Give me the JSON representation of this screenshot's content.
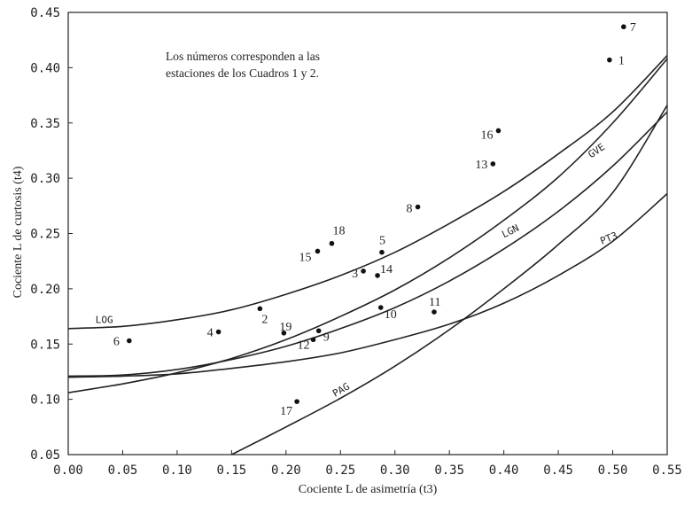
{
  "chart_data": {
    "type": "scatter",
    "title": "",
    "xlabel": "Cociente L de asimetría (t3)",
    "ylabel": "Cociente L de curtosis (t4)",
    "xlim": [
      0.0,
      0.55
    ],
    "ylim": [
      0.05,
      0.45
    ],
    "x_ticks": [
      "0.00",
      "0.05",
      "0.10",
      "0.15",
      "0.20",
      "0.25",
      "0.30",
      "0.35",
      "0.40",
      "0.45",
      "0.50",
      "0.55"
    ],
    "y_ticks": [
      "0.05",
      "0.10",
      "0.15",
      "0.20",
      "0.25",
      "0.30",
      "0.35",
      "0.40",
      "0.45"
    ],
    "grid": false,
    "annotation": [
      "Los números corresponden a las",
      "estaciones de los Cuadros 1 y 2."
    ],
    "points": [
      {
        "label": "1",
        "x": 0.497,
        "y": 0.407
      },
      {
        "label": "2",
        "x": 0.176,
        "y": 0.182
      },
      {
        "label": "3",
        "x": 0.271,
        "y": 0.216
      },
      {
        "label": "4",
        "x": 0.138,
        "y": 0.161
      },
      {
        "label": "5",
        "x": 0.288,
        "y": 0.233
      },
      {
        "label": "6",
        "x": 0.056,
        "y": 0.153
      },
      {
        "label": "7",
        "x": 0.51,
        "y": 0.437
      },
      {
        "label": "8",
        "x": 0.321,
        "y": 0.274
      },
      {
        "label": "9",
        "x": 0.23,
        "y": 0.162
      },
      {
        "label": "10",
        "x": 0.287,
        "y": 0.183
      },
      {
        "label": "11",
        "x": 0.336,
        "y": 0.179
      },
      {
        "label": "12",
        "x": 0.225,
        "y": 0.154
      },
      {
        "label": "13",
        "x": 0.39,
        "y": 0.313
      },
      {
        "label": "14",
        "x": 0.284,
        "y": 0.212
      },
      {
        "label": "15",
        "x": 0.229,
        "y": 0.234
      },
      {
        "label": "16",
        "x": 0.395,
        "y": 0.343
      },
      {
        "label": "17",
        "x": 0.21,
        "y": 0.098
      },
      {
        "label": "18",
        "x": 0.242,
        "y": 0.241
      },
      {
        "label": "19",
        "x": 0.198,
        "y": 0.16
      }
    ],
    "curves": [
      {
        "name": "LOG",
        "x": [
          0.0,
          0.05,
          0.1,
          0.15,
          0.2,
          0.25,
          0.3,
          0.35,
          0.4,
          0.45,
          0.5,
          0.55
        ],
        "y": [
          0.164,
          0.166,
          0.172,
          0.181,
          0.195,
          0.212,
          0.233,
          0.259,
          0.288,
          0.322,
          0.36,
          0.411
        ]
      },
      {
        "name": "GVE",
        "x": [
          0.0,
          0.05,
          0.1,
          0.15,
          0.2,
          0.25,
          0.3,
          0.35,
          0.4,
          0.45,
          0.5,
          0.55
        ],
        "y": [
          0.106,
          0.114,
          0.124,
          0.137,
          0.154,
          0.175,
          0.199,
          0.228,
          0.262,
          0.301,
          0.35,
          0.408
        ]
      },
      {
        "name": "LGN",
        "x": [
          0.0,
          0.05,
          0.1,
          0.15,
          0.2,
          0.25,
          0.3,
          0.35,
          0.4,
          0.45,
          0.5,
          0.55
        ],
        "y": [
          0.121,
          0.122,
          0.127,
          0.136,
          0.148,
          0.164,
          0.183,
          0.207,
          0.236,
          0.27,
          0.311,
          0.36
        ]
      },
      {
        "name": "PT3",
        "x": [
          0.0,
          0.05,
          0.1,
          0.15,
          0.2,
          0.25,
          0.3,
          0.35,
          0.4,
          0.45,
          0.5,
          0.55
        ],
        "y": [
          0.12,
          0.121,
          0.123,
          0.128,
          0.134,
          0.142,
          0.154,
          0.168,
          0.187,
          0.212,
          0.243,
          0.286
        ]
      },
      {
        "name": "PAG",
        "x": [
          0.15,
          0.2,
          0.25,
          0.3,
          0.35,
          0.4,
          0.45,
          0.5,
          0.55
        ],
        "y": [
          0.05,
          0.075,
          0.101,
          0.13,
          0.163,
          0.2,
          0.24,
          0.287,
          0.366
        ]
      }
    ]
  }
}
